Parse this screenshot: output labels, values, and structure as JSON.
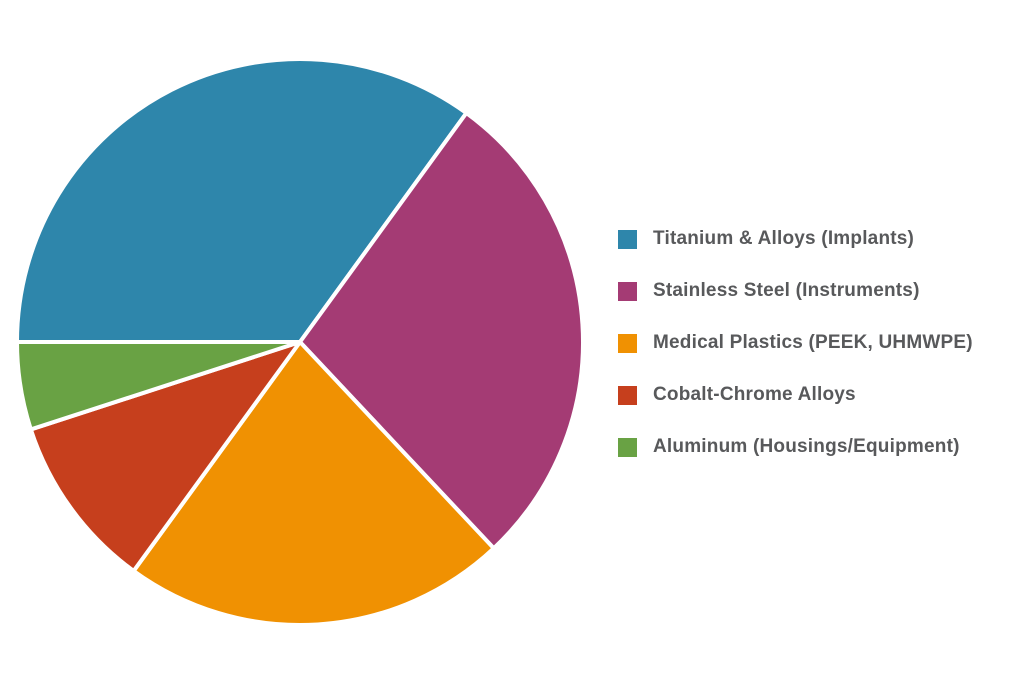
{
  "chart_data": {
    "type": "pie",
    "title": "",
    "labels": [
      "Titanium & Alloys (Implants)",
      "Stainless Steel (Instruments)",
      "Medical Plastics (PEEK, UHMWPE)",
      "Cobalt-Chrome Alloys",
      "Aluminum (Housings/Equipment)"
    ],
    "values": [
      35,
      28,
      22,
      10,
      5
    ],
    "unit": "percent",
    "colors": [
      "#2E86AB",
      "#A43B74",
      "#F09102",
      "#C63F1D",
      "#69A244"
    ],
    "start_angle_deg": 180,
    "direction": "clockwise",
    "wedge_edge_color": "#FFFFFF",
    "wedge_edge_width": 4,
    "legend_position": "right",
    "legend_text_color": "#58595B",
    "background_color": "#FFFFFF",
    "data_labels_shown": false
  }
}
